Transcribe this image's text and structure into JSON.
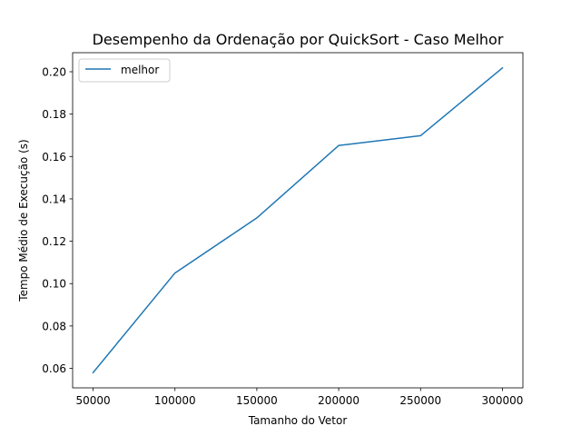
{
  "chart_data": {
    "type": "line",
    "title": "Desempenho da Ordenação por QuickSort - Caso Melhor",
    "xlabel": "Tamanho do Vetor",
    "ylabel": "Tempo Médio de Execução (s)",
    "x": [
      50000,
      100000,
      150000,
      200000,
      250000,
      300000
    ],
    "series": [
      {
        "name": "melhor",
        "values": [
          0.058,
          0.105,
          0.131,
          0.1652,
          0.1698,
          0.2018
        ],
        "color": "#1f77b4"
      }
    ],
    "xticks": [
      50000,
      100000,
      150000,
      200000,
      250000,
      300000
    ],
    "xtick_labels": [
      "50000",
      "100000",
      "150000",
      "200000",
      "250000",
      "300000"
    ],
    "yticks": [
      0.06,
      0.08,
      0.1,
      0.12,
      0.14,
      0.16,
      0.18,
      0.2
    ],
    "ytick_labels": [
      "0.06",
      "0.08",
      "0.10",
      "0.12",
      "0.14",
      "0.16",
      "0.18",
      "0.20"
    ],
    "xlim": [
      37500,
      312500
    ],
    "ylim": [
      0.0508,
      0.209
    ],
    "grid": false,
    "legend_position": "upper-left"
  }
}
